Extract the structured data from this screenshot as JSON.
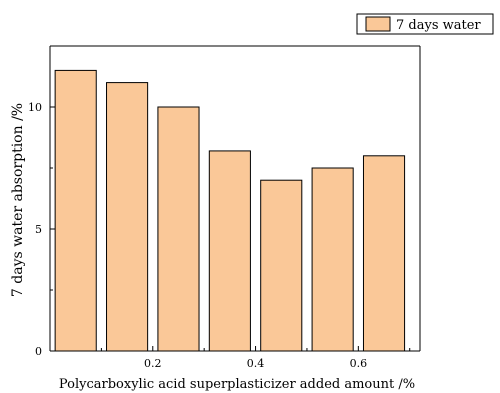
{
  "chart_data": {
    "type": "bar",
    "title": "",
    "xlabel": "Polycarboxylic acid superplasticizer added amount /%",
    "ylabel": "7 days water absorption /%",
    "x": [
      0.05,
      0.15,
      0.25,
      0.35,
      0.45,
      0.55,
      0.65
    ],
    "values": [
      11.5,
      11.0,
      10.0,
      8.2,
      7.0,
      7.5,
      8.0
    ],
    "bar_width": 0.08,
    "xlim": [
      0.0,
      0.72
    ],
    "ylim": [
      0,
      12.5
    ],
    "x_ticks": [
      0.2,
      0.4,
      0.6
    ],
    "x_tick_labels": [
      "0.2",
      "0.4",
      "0.6"
    ],
    "y_ticks": [
      0,
      5,
      10
    ],
    "y_tick_labels": [
      "0",
      "5",
      "10"
    ],
    "series": [
      {
        "name": "7 days water",
        "values": [
          11.5,
          11.0,
          10.0,
          8.2,
          7.0,
          7.5,
          8.0
        ]
      }
    ],
    "legend_position": "top-right",
    "grid": false,
    "colors": {
      "bar_fill": "#FAC898",
      "bar_stroke": "#000000"
    }
  }
}
